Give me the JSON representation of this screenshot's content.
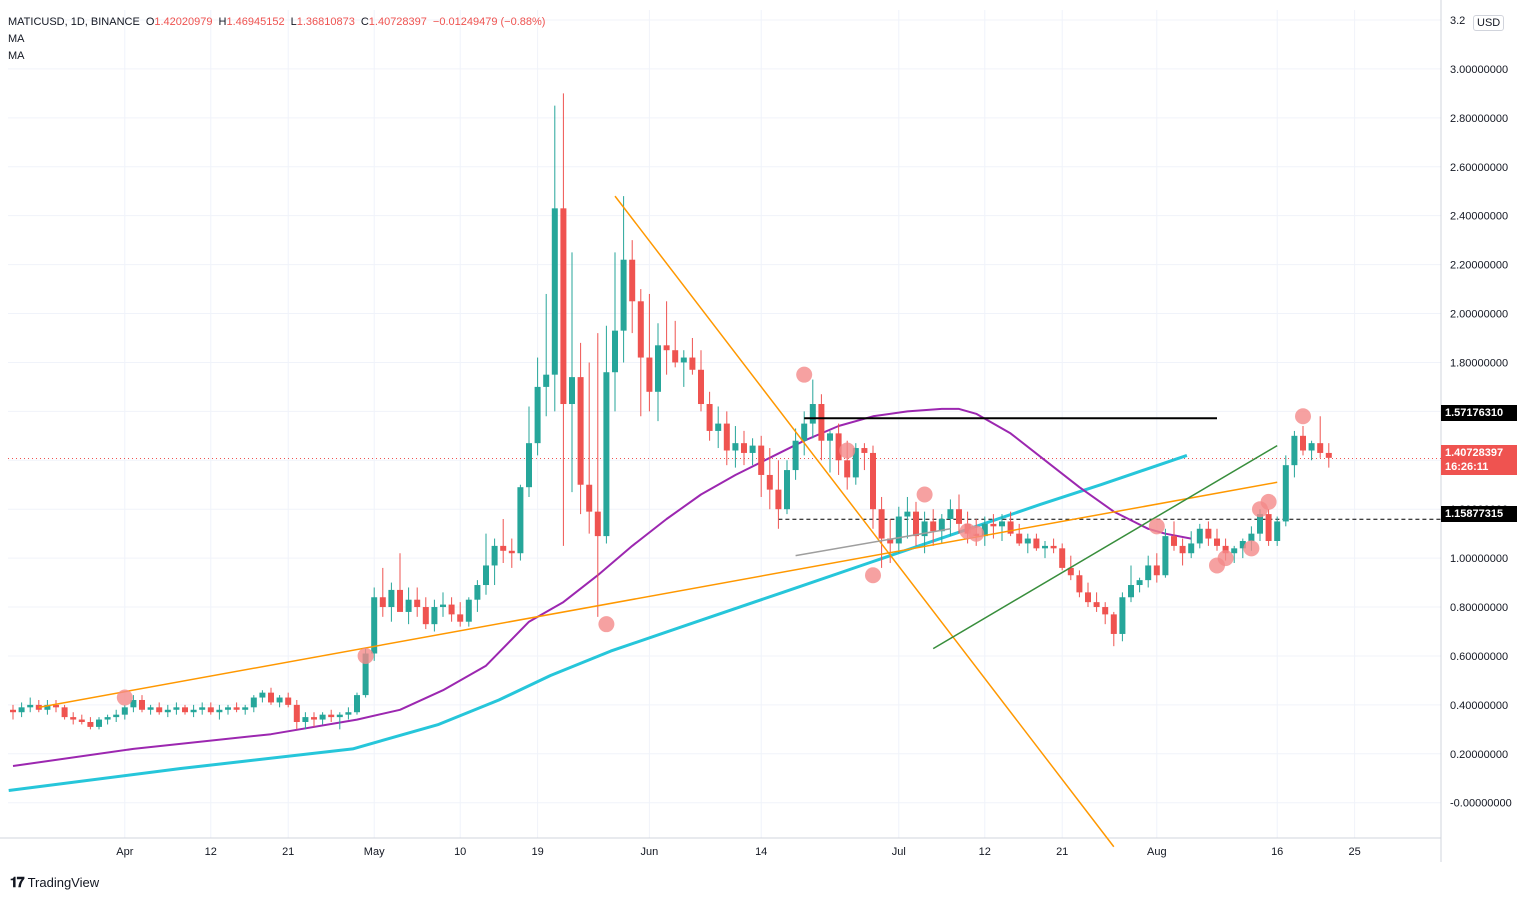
{
  "header": {
    "symbol": "MATICUSD, 1D, BINANCE",
    "open_label": "O",
    "open": "1.42020979",
    "high_label": "H",
    "high": "1.46945152",
    "low_label": "L",
    "low": "1.36810873",
    "close_label": "C",
    "close": "1.40728397",
    "change": "−0.01249479 (−0.88%)",
    "indicators": [
      "MA",
      "MA"
    ]
  },
  "currency": "USD",
  "price_axis": {
    "top_partial": "3.2",
    "ticks": [
      "3.00000000",
      "2.80000000",
      "2.60000000",
      "2.40000000",
      "2.20000000",
      "2.00000000",
      "1.80000000",
      "1.60000000",
      "1.40000000",
      "1.20000000",
      "1.00000000",
      "0.80000000",
      "0.60000000",
      "0.40000000",
      "0.20000000",
      "-0.00000000"
    ]
  },
  "time_axis": {
    "ticks": [
      "Apr",
      "12",
      "21",
      "May",
      "10",
      "19",
      "Jun",
      "14",
      "Jul",
      "12",
      "21",
      "Aug",
      "16",
      "25"
    ]
  },
  "price_tags": {
    "resistance": "1.57176310",
    "current": "1.40728397",
    "countdown": "16:26:11",
    "support": "1.15877315"
  },
  "brand": "TradingView",
  "colors": {
    "up": "#26a69a",
    "down": "#ef5350",
    "ma_fast": "#9c27b0",
    "ma_slow": "#26c6da",
    "trend_orange": "#ff9800",
    "trend_green": "#388e3c",
    "marker": "#f48a8a"
  },
  "chart_data": {
    "type": "candlestick",
    "title": "MATICUSD, 1D, BINANCE",
    "ylim": [
      -0.18,
      3.22
    ],
    "x_start": "2021-03-19",
    "candles_ohlc": [
      [
        0.38,
        0.4,
        0.34,
        0.37
      ],
      [
        0.37,
        0.41,
        0.35,
        0.39
      ],
      [
        0.39,
        0.43,
        0.37,
        0.4
      ],
      [
        0.4,
        0.42,
        0.37,
        0.38
      ],
      [
        0.38,
        0.42,
        0.36,
        0.4
      ],
      [
        0.4,
        0.42,
        0.37,
        0.39
      ],
      [
        0.39,
        0.4,
        0.34,
        0.35
      ],
      [
        0.35,
        0.37,
        0.32,
        0.34
      ],
      [
        0.34,
        0.36,
        0.32,
        0.33
      ],
      [
        0.33,
        0.35,
        0.3,
        0.31
      ],
      [
        0.31,
        0.35,
        0.3,
        0.34
      ],
      [
        0.34,
        0.36,
        0.32,
        0.35
      ],
      [
        0.35,
        0.38,
        0.33,
        0.36
      ],
      [
        0.36,
        0.4,
        0.34,
        0.39
      ],
      [
        0.39,
        0.44,
        0.37,
        0.42
      ],
      [
        0.42,
        0.44,
        0.37,
        0.38
      ],
      [
        0.38,
        0.4,
        0.36,
        0.39
      ],
      [
        0.39,
        0.41,
        0.36,
        0.37
      ],
      [
        0.37,
        0.4,
        0.35,
        0.38
      ],
      [
        0.38,
        0.41,
        0.36,
        0.39
      ],
      [
        0.39,
        0.4,
        0.36,
        0.37
      ],
      [
        0.37,
        0.4,
        0.35,
        0.38
      ],
      [
        0.38,
        0.41,
        0.36,
        0.39
      ],
      [
        0.39,
        0.41,
        0.36,
        0.37
      ],
      [
        0.37,
        0.4,
        0.34,
        0.38
      ],
      [
        0.38,
        0.4,
        0.36,
        0.39
      ],
      [
        0.39,
        0.41,
        0.37,
        0.38
      ],
      [
        0.38,
        0.4,
        0.36,
        0.39
      ],
      [
        0.39,
        0.44,
        0.37,
        0.43
      ],
      [
        0.43,
        0.46,
        0.41,
        0.45
      ],
      [
        0.45,
        0.47,
        0.4,
        0.41
      ],
      [
        0.41,
        0.44,
        0.39,
        0.43
      ],
      [
        0.43,
        0.45,
        0.39,
        0.4
      ],
      [
        0.4,
        0.42,
        0.3,
        0.33
      ],
      [
        0.33,
        0.37,
        0.3,
        0.35
      ],
      [
        0.35,
        0.37,
        0.31,
        0.34
      ],
      [
        0.34,
        0.37,
        0.32,
        0.36
      ],
      [
        0.36,
        0.38,
        0.33,
        0.35
      ],
      [
        0.35,
        0.37,
        0.3,
        0.36
      ],
      [
        0.36,
        0.39,
        0.34,
        0.37
      ],
      [
        0.37,
        0.45,
        0.36,
        0.44
      ],
      [
        0.44,
        0.63,
        0.43,
        0.61
      ],
      [
        0.61,
        0.88,
        0.58,
        0.84
      ],
      [
        0.84,
        0.96,
        0.76,
        0.8
      ],
      [
        0.8,
        0.9,
        0.74,
        0.87
      ],
      [
        0.87,
        1.02,
        0.8,
        0.78
      ],
      [
        0.78,
        0.88,
        0.73,
        0.83
      ],
      [
        0.83,
        0.88,
        0.76,
        0.8
      ],
      [
        0.8,
        0.84,
        0.71,
        0.73
      ],
      [
        0.73,
        0.83,
        0.7,
        0.8
      ],
      [
        0.8,
        0.86,
        0.76,
        0.81
      ],
      [
        0.81,
        0.84,
        0.74,
        0.77
      ],
      [
        0.77,
        0.82,
        0.72,
        0.74
      ],
      [
        0.74,
        0.84,
        0.72,
        0.83
      ],
      [
        0.83,
        0.91,
        0.78,
        0.89
      ],
      [
        0.89,
        1.1,
        0.85,
        0.97
      ],
      [
        0.97,
        1.08,
        0.89,
        1.05
      ],
      [
        1.05,
        1.16,
        0.98,
        1.03
      ],
      [
        1.03,
        1.08,
        0.96,
        1.02
      ],
      [
        1.02,
        1.3,
        0.99,
        1.29
      ],
      [
        1.29,
        1.62,
        1.25,
        1.47
      ],
      [
        1.47,
        1.82,
        1.42,
        1.7
      ],
      [
        1.7,
        2.08,
        1.58,
        1.75
      ],
      [
        1.75,
        2.85,
        1.6,
        2.43
      ],
      [
        2.43,
        2.9,
        1.05,
        1.63
      ],
      [
        1.63,
        2.25,
        1.27,
        1.74
      ],
      [
        1.74,
        1.88,
        1.18,
        1.3
      ],
      [
        1.3,
        1.8,
        1.1,
        1.19
      ],
      [
        1.19,
        1.92,
        0.76,
        1.09
      ],
      [
        1.09,
        1.95,
        1.06,
        1.76
      ],
      [
        1.76,
        2.25,
        1.6,
        1.93
      ],
      [
        1.93,
        2.48,
        1.8,
        2.22
      ],
      [
        2.22,
        2.3,
        1.92,
        2.05
      ],
      [
        2.05,
        2.1,
        1.58,
        1.82
      ],
      [
        1.82,
        2.08,
        1.6,
        1.68
      ],
      [
        1.68,
        1.96,
        1.56,
        1.87
      ],
      [
        1.87,
        2.05,
        1.75,
        1.85
      ],
      [
        1.85,
        1.97,
        1.78,
        1.8
      ],
      [
        1.8,
        1.85,
        1.7,
        1.82
      ],
      [
        1.82,
        1.9,
        1.75,
        1.77
      ],
      [
        1.77,
        1.85,
        1.6,
        1.63
      ],
      [
        1.63,
        1.68,
        1.48,
        1.52
      ],
      [
        1.52,
        1.62,
        1.45,
        1.55
      ],
      [
        1.55,
        1.6,
        1.38,
        1.44
      ],
      [
        1.44,
        1.54,
        1.37,
        1.47
      ],
      [
        1.47,
        1.52,
        1.38,
        1.43
      ],
      [
        1.43,
        1.49,
        1.38,
        1.46
      ],
      [
        1.46,
        1.5,
        1.25,
        1.34
      ],
      [
        1.34,
        1.45,
        1.2,
        1.28
      ],
      [
        1.28,
        1.4,
        1.12,
        1.2
      ],
      [
        1.2,
        1.4,
        1.18,
        1.36
      ],
      [
        1.36,
        1.53,
        1.32,
        1.48
      ],
      [
        1.48,
        1.6,
        1.42,
        1.55
      ],
      [
        1.55,
        1.73,
        1.49,
        1.63
      ],
      [
        1.63,
        1.67,
        1.4,
        1.48
      ],
      [
        1.48,
        1.52,
        1.35,
        1.51
      ],
      [
        1.51,
        1.55,
        1.34,
        1.4
      ],
      [
        1.4,
        1.48,
        1.28,
        1.33
      ],
      [
        1.33,
        1.47,
        1.3,
        1.45
      ],
      [
        1.45,
        1.47,
        1.36,
        1.43
      ],
      [
        1.43,
        1.46,
        1.12,
        1.2
      ],
      [
        1.2,
        1.25,
        0.96,
        1.08
      ],
      [
        1.08,
        1.16,
        0.98,
        1.06
      ],
      [
        1.06,
        1.21,
        1.02,
        1.17
      ],
      [
        1.17,
        1.25,
        1.08,
        1.19
      ],
      [
        1.19,
        1.23,
        1.05,
        1.09
      ],
      [
        1.09,
        1.19,
        1.02,
        1.15
      ],
      [
        1.15,
        1.2,
        1.05,
        1.11
      ],
      [
        1.11,
        1.18,
        1.06,
        1.16
      ],
      [
        1.16,
        1.24,
        1.09,
        1.2
      ],
      [
        1.2,
        1.26,
        1.1,
        1.14
      ],
      [
        1.14,
        1.19,
        1.06,
        1.1
      ],
      [
        1.1,
        1.16,
        1.05,
        1.09
      ],
      [
        1.09,
        1.17,
        1.05,
        1.14
      ],
      [
        1.14,
        1.18,
        1.08,
        1.13
      ],
      [
        1.13,
        1.18,
        1.07,
        1.15
      ],
      [
        1.15,
        1.19,
        1.09,
        1.1
      ],
      [
        1.1,
        1.14,
        1.05,
        1.06
      ],
      [
        1.06,
        1.1,
        1.02,
        1.08
      ],
      [
        1.08,
        1.1,
        1.03,
        1.04
      ],
      [
        1.04,
        1.07,
        1.0,
        1.05
      ],
      [
        1.05,
        1.08,
        1.02,
        1.04
      ],
      [
        1.04,
        1.06,
        0.95,
        0.96
      ],
      [
        0.96,
        1.01,
        0.91,
        0.93
      ],
      [
        0.93,
        0.95,
        0.84,
        0.86
      ],
      [
        0.86,
        0.9,
        0.8,
        0.82
      ],
      [
        0.82,
        0.86,
        0.78,
        0.8
      ],
      [
        0.8,
        0.82,
        0.73,
        0.77
      ],
      [
        0.77,
        0.78,
        0.64,
        0.69
      ],
      [
        0.69,
        0.86,
        0.66,
        0.84
      ],
      [
        0.84,
        0.97,
        0.82,
        0.89
      ],
      [
        0.89,
        0.92,
        0.86,
        0.91
      ],
      [
        0.91,
        1.01,
        0.88,
        0.97
      ],
      [
        0.97,
        1.02,
        0.9,
        0.93
      ],
      [
        0.93,
        1.12,
        0.92,
        1.09
      ],
      [
        1.09,
        1.15,
        1.03,
        1.05
      ],
      [
        1.05,
        1.08,
        0.97,
        1.02
      ],
      [
        1.02,
        1.11,
        1.0,
        1.06
      ],
      [
        1.06,
        1.14,
        1.04,
        1.12
      ],
      [
        1.12,
        1.15,
        1.05,
        1.08
      ],
      [
        1.08,
        1.12,
        1.03,
        1.05
      ],
      [
        1.05,
        1.08,
        0.99,
        1.02
      ],
      [
        1.02,
        1.05,
        0.98,
        1.04
      ],
      [
        1.04,
        1.08,
        1.0,
        1.07
      ],
      [
        1.07,
        1.13,
        1.03,
        1.1
      ],
      [
        1.1,
        1.2,
        1.07,
        1.18
      ],
      [
        1.18,
        1.2,
        1.05,
        1.07
      ],
      [
        1.07,
        1.17,
        1.05,
        1.15
      ],
      [
        1.15,
        1.42,
        1.13,
        1.38
      ],
      [
        1.38,
        1.52,
        1.33,
        1.5
      ],
      [
        1.5,
        1.54,
        1.42,
        1.44
      ],
      [
        1.44,
        1.48,
        1.4,
        1.47
      ],
      [
        1.47,
        1.58,
        1.41,
        1.43
      ],
      [
        1.43,
        1.47,
        1.37,
        1.41
      ]
    ],
    "ma_fast_purple": [
      [
        0,
        0.15
      ],
      [
        14,
        0.22
      ],
      [
        30,
        0.28
      ],
      [
        40,
        0.34
      ],
      [
        45,
        0.38
      ],
      [
        50,
        0.46
      ],
      [
        55,
        0.56
      ],
      [
        60,
        0.74
      ],
      [
        64,
        0.82
      ],
      [
        68,
        0.93
      ],
      [
        72,
        1.05
      ],
      [
        76,
        1.16
      ],
      [
        80,
        1.26
      ],
      [
        84,
        1.34
      ],
      [
        88,
        1.41
      ],
      [
        92,
        1.48
      ],
      [
        96,
        1.54
      ],
      [
        100,
        1.58
      ],
      [
        104,
        1.6
      ],
      [
        108,
        1.61
      ],
      [
        110,
        1.61
      ],
      [
        112,
        1.59
      ],
      [
        116,
        1.51
      ],
      [
        120,
        1.4
      ],
      [
        124,
        1.29
      ],
      [
        128,
        1.19
      ],
      [
        132,
        1.12
      ],
      [
        134,
        1.1
      ],
      [
        137,
        1.08
      ]
    ],
    "ma_slow_cyan": [
      [
        0,
        0.05
      ],
      [
        20,
        0.14
      ],
      [
        40,
        0.22
      ],
      [
        50,
        0.32
      ],
      [
        57,
        0.42
      ],
      [
        63,
        0.52
      ],
      [
        70,
        0.62
      ],
      [
        80,
        0.74
      ],
      [
        90,
        0.86
      ],
      [
        100,
        0.98
      ],
      [
        110,
        1.1
      ],
      [
        120,
        1.22
      ],
      [
        127,
        1.3
      ],
      [
        137,
        1.42
      ]
    ],
    "trendlines": [
      {
        "color": "orange",
        "from": [
          3,
          0.39
        ],
        "to": [
          147,
          1.31
        ]
      },
      {
        "color": "orange",
        "from": [
          70,
          2.48
        ],
        "to": [
          128,
          -0.18
        ]
      },
      {
        "color": "green",
        "from": [
          107,
          0.63
        ],
        "to": [
          147,
          1.46
        ]
      },
      {
        "color": "black",
        "from": [
          92,
          1.5717631
        ],
        "to": [
          140,
          1.5717631
        ]
      },
      {
        "color": "gray",
        "from": [
          91,
          1.01
        ],
        "to": [
          109,
          1.12
        ]
      }
    ]
  }
}
